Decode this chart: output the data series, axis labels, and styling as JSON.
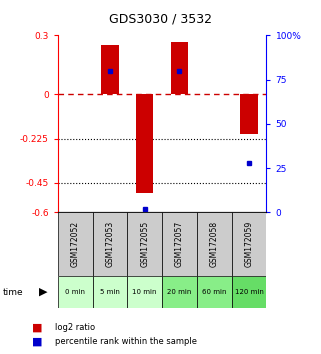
{
  "title": "GDS3030 / 3532",
  "samples": [
    "GSM172052",
    "GSM172053",
    "GSM172055",
    "GSM172057",
    "GSM172058",
    "GSM172059"
  ],
  "time_labels": [
    "0 min",
    "5 min",
    "10 min",
    "20 min",
    "60 min",
    "120 min"
  ],
  "log2_ratio": [
    0.0,
    0.25,
    -0.5,
    0.265,
    0.0,
    -0.2
  ],
  "percentile_rank": [
    null,
    80,
    2,
    80,
    null,
    28
  ],
  "ylim_left": [
    -0.6,
    0.3
  ],
  "ylim_right": [
    0,
    100
  ],
  "yticks_left": [
    0.3,
    0.0,
    -0.225,
    -0.45,
    -0.6
  ],
  "ytick_labels_left": [
    "0.3",
    "0",
    "-0.225",
    "-0.45",
    "-0.6"
  ],
  "yticks_right": [
    100,
    75,
    50,
    25,
    0
  ],
  "ytick_labels_right": [
    "100%",
    "75",
    "50",
    "25",
    "0"
  ],
  "bar_color": "#cc0000",
  "dot_color": "#0000cc",
  "zero_line_color": "#cc0000",
  "grid_color": "#000000",
  "bg_color": "#ffffff",
  "sample_box_color": "#cccccc",
  "time_box_colors": [
    "#ccffcc",
    "#ccffcc",
    "#ccffcc",
    "#88ee88",
    "#88ee88",
    "#66dd66"
  ],
  "bar_width": 0.5
}
